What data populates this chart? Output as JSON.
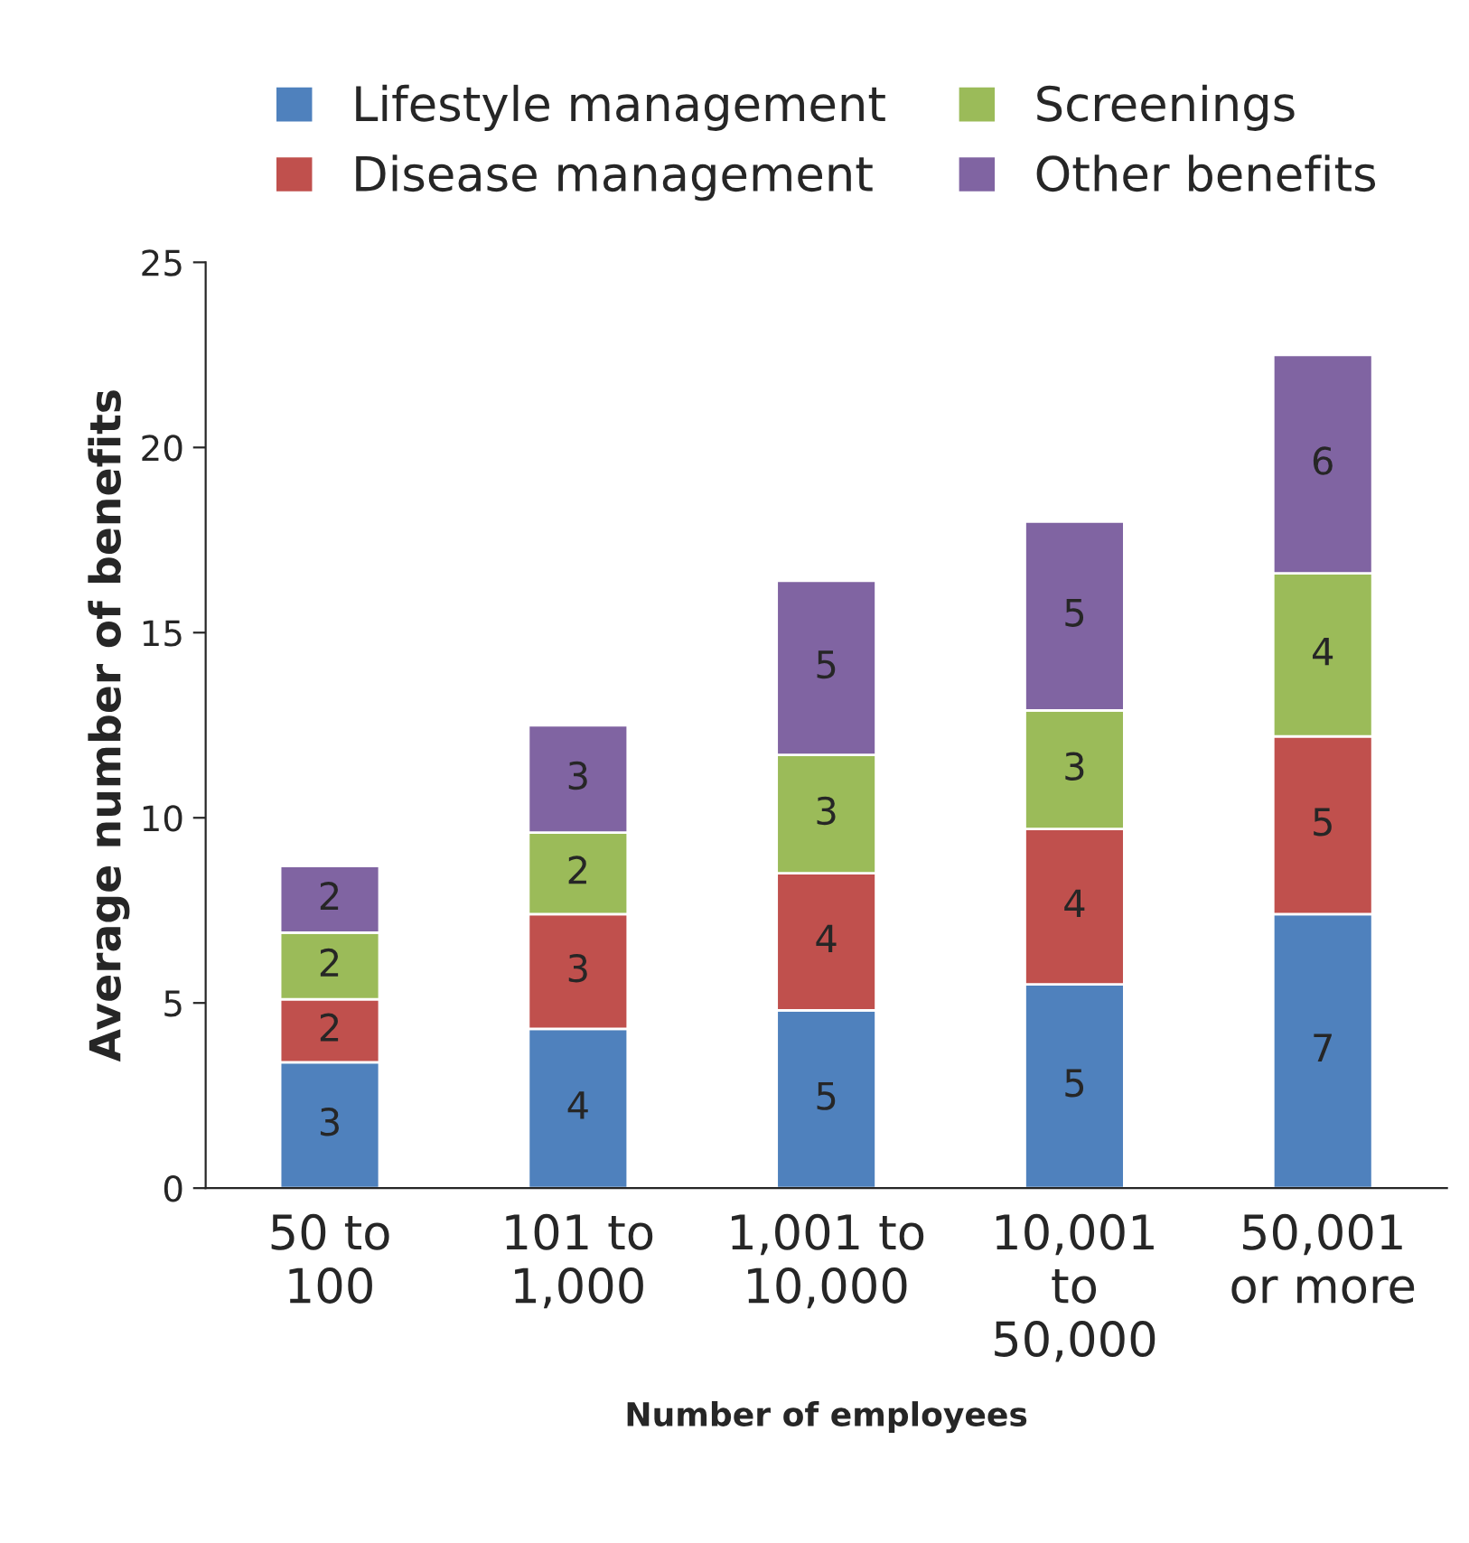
{
  "chart_data": {
    "type": "bar",
    "stacked": true,
    "xlabel": "Number of employees",
    "ylabel": "Average number of benefits",
    "categories": [
      "50 to\n100",
      "101 to\n1,000",
      "1,001 to\n10,000",
      "10,001\nto\n50,000",
      "50,001\nor more"
    ],
    "series": [
      {
        "name": "Lifestyle management",
        "color": "#4f81bd",
        "values": [
          3.4,
          4.3,
          4.8,
          5.5,
          7.4
        ],
        "value_labels": [
          "3",
          "4",
          "5",
          "5",
          "7"
        ]
      },
      {
        "name": "Disease management",
        "color": "#c0504d",
        "values": [
          1.7,
          3.1,
          3.7,
          4.2,
          4.8
        ],
        "value_labels": [
          "2",
          "3",
          "4",
          "4",
          "5"
        ]
      },
      {
        "name": "Screenings",
        "color": "#9bbb59",
        "values": [
          1.8,
          2.2,
          3.2,
          3.2,
          4.4
        ],
        "value_labels": [
          "2",
          "2",
          "3",
          "3",
          "4"
        ]
      },
      {
        "name": "Other benefits",
        "color": "#8064a2",
        "values": [
          1.8,
          2.9,
          4.7,
          5.1,
          5.9
        ],
        "value_labels": [
          "2",
          "3",
          "5",
          "5",
          "6"
        ]
      }
    ],
    "ylim": [
      0,
      25
    ],
    "yticks": [
      0,
      5,
      10,
      15,
      20,
      25
    ],
    "grid": false,
    "legend": "top"
  }
}
